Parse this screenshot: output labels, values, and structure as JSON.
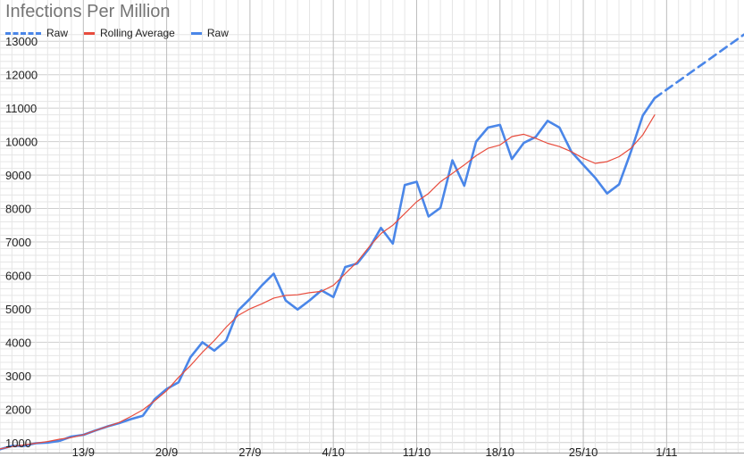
{
  "chart_data": {
    "type": "line",
    "title": "Infections Per Million",
    "xlabel": "",
    "ylabel": "",
    "ylim": [
      700,
      13300
    ],
    "yticks": [
      1000,
      2000,
      3000,
      4000,
      5000,
      6000,
      7000,
      8000,
      9000,
      10000,
      11000,
      12000,
      13000
    ],
    "xticks": [
      {
        "label": "13/9",
        "day": 13
      },
      {
        "label": "20/9",
        "day": 20
      },
      {
        "label": "27/9",
        "day": 27
      },
      {
        "label": "4/10",
        "day": 34
      },
      {
        "label": "11/10",
        "day": 41
      },
      {
        "label": "18/10",
        "day": 48
      },
      {
        "label": "25/10",
        "day": 55
      },
      {
        "label": "1/11",
        "day": 62
      }
    ],
    "xlim": [
      6,
      68.5
    ],
    "grid": true,
    "legend": {
      "position": "top-left",
      "entries": [
        {
          "label": "Raw",
          "color": "#4a86e8",
          "style": "dashed"
        },
        {
          "label": "Rolling Average",
          "color": "#e84c3d",
          "style": "solid"
        },
        {
          "label": "Raw",
          "color": "#4a86e8",
          "style": "solid"
        }
      ]
    },
    "series": [
      {
        "name": "Raw",
        "color": "#4a86e8",
        "style": "solid",
        "x": [
          6,
          7,
          8,
          9,
          10,
          11,
          12,
          13,
          14,
          15,
          16,
          17,
          18,
          19,
          20,
          21,
          22,
          23,
          24,
          25,
          26,
          27,
          28,
          29,
          30,
          31,
          32,
          33,
          34,
          35,
          36,
          37,
          38,
          39,
          40,
          41,
          42,
          43,
          44,
          45,
          46,
          47,
          48,
          49,
          50,
          51,
          52,
          53,
          54,
          55,
          56,
          57,
          58,
          59,
          60,
          61
        ],
        "y": [
          800,
          900,
          900,
          980,
          1000,
          1050,
          1180,
          1230,
          1360,
          1480,
          1580,
          1700,
          1800,
          2300,
          2600,
          2800,
          3550,
          4000,
          3750,
          4050,
          4950,
          5300,
          5700,
          6050,
          5250,
          4980,
          5250,
          5550,
          5350,
          6250,
          6350,
          6800,
          7420,
          6950,
          8700,
          8800,
          7760,
          8020,
          9440,
          8680,
          10000,
          10420,
          10500,
          9480,
          9960,
          10140,
          10620,
          10420,
          9700,
          9300,
          8920,
          8450,
          8720,
          9700,
          10780,
          11300
        ]
      },
      {
        "name": "Rolling Average",
        "color": "#e84c3d",
        "style": "solid",
        "x": [
          6,
          7,
          8,
          9,
          10,
          11,
          12,
          13,
          14,
          15,
          16,
          17,
          18,
          19,
          20,
          21,
          22,
          23,
          24,
          25,
          26,
          27,
          28,
          29,
          30,
          31,
          32,
          33,
          34,
          35,
          36,
          37,
          38,
          39,
          40,
          41,
          42,
          43,
          44,
          45,
          46,
          47,
          48,
          49,
          50,
          51,
          52,
          53,
          54,
          55,
          56,
          57,
          58,
          59,
          60,
          61
        ],
        "y": [
          810,
          880,
          930,
          980,
          1030,
          1100,
          1150,
          1230,
          1360,
          1480,
          1600,
          1780,
          1980,
          2250,
          2550,
          2950,
          3300,
          3700,
          4050,
          4450,
          4800,
          5000,
          5150,
          5320,
          5400,
          5420,
          5480,
          5520,
          5700,
          6050,
          6400,
          6850,
          7250,
          7500,
          7850,
          8200,
          8450,
          8800,
          9050,
          9300,
          9580,
          9800,
          9900,
          10150,
          10220,
          10100,
          9950,
          9850,
          9700,
          9500,
          9350,
          9400,
          9550,
          9800,
          10200,
          10800
        ]
      },
      {
        "name": "Raw",
        "color": "#4a86e8",
        "style": "dashed",
        "x": [
          61,
          68.5
        ],
        "y": [
          11300,
          13200
        ]
      }
    ]
  }
}
